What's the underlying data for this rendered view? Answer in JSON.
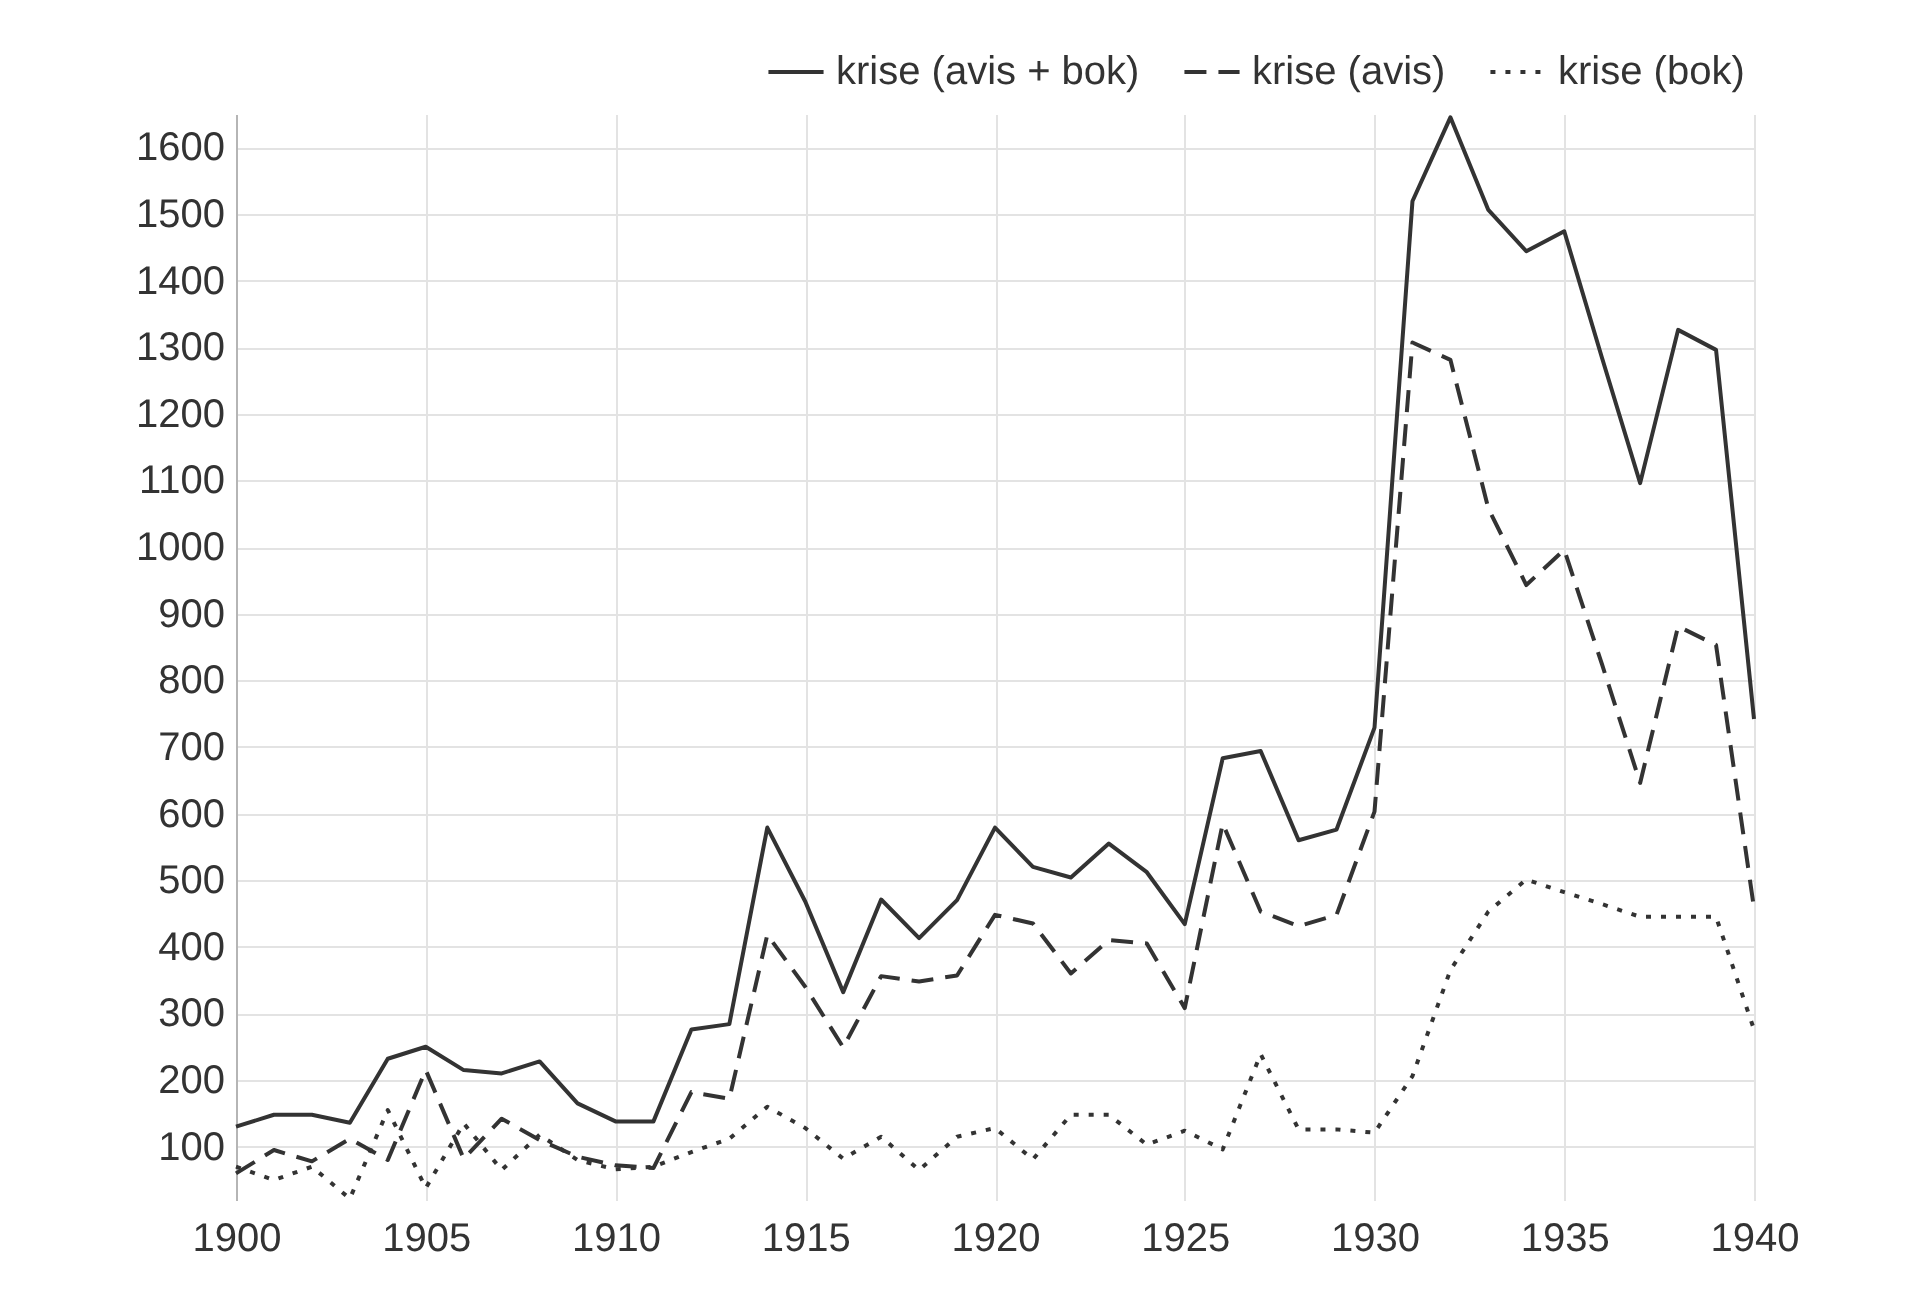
{
  "chart_data": {
    "type": "line",
    "x": [
      1900,
      1901,
      1902,
      1903,
      1904,
      1905,
      1906,
      1907,
      1908,
      1909,
      1910,
      1911,
      1912,
      1913,
      1914,
      1915,
      1916,
      1917,
      1918,
      1919,
      1920,
      1921,
      1922,
      1923,
      1924,
      1925,
      1926,
      1927,
      1928,
      1929,
      1930,
      1931,
      1932,
      1933,
      1934,
      1935,
      1936,
      1937,
      1938,
      1939,
      1940
    ],
    "xlim": [
      1900,
      1940
    ],
    "xticks": [
      1900,
      1905,
      1910,
      1915,
      1920,
      1925,
      1930,
      1935,
      1940
    ],
    "ylim": [
      20,
      1650
    ],
    "yticks": [
      100,
      200,
      300,
      400,
      500,
      600,
      700,
      800,
      900,
      1000,
      1100,
      1200,
      1300,
      1400,
      1500,
      1600
    ],
    "grid": true,
    "legend": "top right",
    "series": [
      {
        "name": "krise (avis + bok)",
        "color": "#333333",
        "line_style": "solid",
        "values": [
          130,
          148,
          148,
          136,
          232,
          250,
          215,
          210,
          228,
          165,
          138,
          138,
          276,
          284,
          579,
          468,
          332,
          471,
          413,
          470,
          579,
          520,
          504,
          555,
          512,
          434,
          683,
          694,
          560,
          576,
          729,
          1519,
          1645,
          1506,
          1444,
          1474,
          1283,
          1096,
          1326,
          1296,
          742
        ]
      },
      {
        "name": "krise (avis)",
        "color": "#333333",
        "line_style": "dashed",
        "values": [
          60,
          95,
          78,
          112,
          80,
          215,
          82,
          142,
          110,
          85,
          72,
          68,
          182,
          172,
          418,
          340,
          249,
          356,
          348,
          357,
          448,
          435,
          360,
          410,
          405,
          308,
          585,
          453,
          431,
          448,
          603,
          1307,
          1281,
          1058,
          943,
          996,
          823,
          646,
          881,
          853,
          458
        ]
      },
      {
        "name": "krise (bok)",
        "color": "#333333",
        "line_style": "dotted",
        "values": [
          70,
          50,
          70,
          22,
          155,
          38,
          135,
          65,
          118,
          80,
          66,
          70,
          92,
          112,
          160,
          128,
          82,
          115,
          65,
          115,
          128,
          81,
          148,
          148,
          103,
          124,
          96,
          239,
          126,
          126,
          121,
          206,
          365,
          453,
          501,
          482,
          464,
          445,
          445,
          445,
          276
        ]
      }
    ]
  }
}
